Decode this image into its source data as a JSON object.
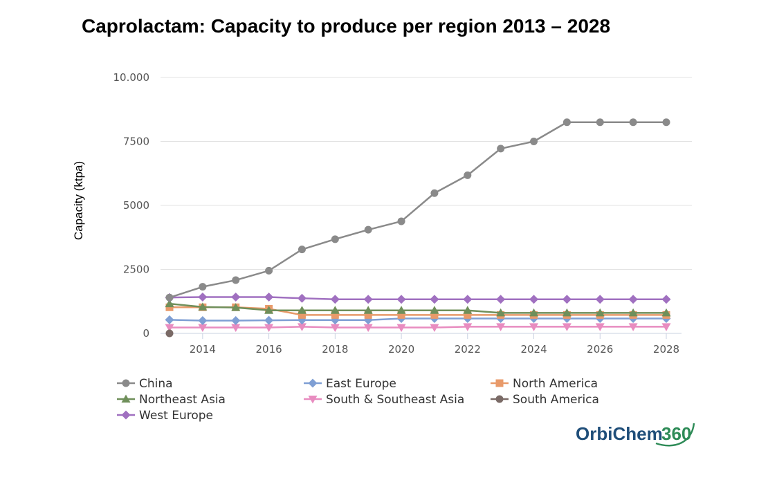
{
  "chart_data": {
    "type": "line",
    "title": "Caprolactam: Capacity to produce per region 2013 – 2028",
    "ylabel": "Capacity (ktpa)",
    "xlabel": "",
    "ylim": [
      0,
      10000
    ],
    "xlim": [
      2013,
      2028
    ],
    "y_ticks": [
      0,
      2500,
      5000,
      7500,
      10000
    ],
    "y_tick_labels": [
      "0",
      "2500",
      "5000",
      "7500",
      "10.000"
    ],
    "x_ticks": [
      2014,
      2016,
      2018,
      2020,
      2022,
      2024,
      2026,
      2028
    ],
    "x_tick_labels": [
      "2014",
      "2016",
      "2018",
      "2020",
      "2022",
      "2024",
      "2026",
      "2028"
    ],
    "x": [
      2013,
      2014,
      2015,
      2016,
      2017,
      2018,
      2019,
      2020,
      2021,
      2022,
      2023,
      2024,
      2025,
      2026,
      2027,
      2028
    ],
    "grid": true,
    "legend_position": "bottom",
    "series": [
      {
        "name": "China",
        "color": "#8a8a8a",
        "marker": "circle",
        "values": [
          1400,
          1820,
          2080,
          2450,
          3280,
          3680,
          4050,
          4380,
          5480,
          6180,
          7220,
          7500,
          8250,
          8250,
          8250,
          8250
        ]
      },
      {
        "name": "East Europe",
        "color": "#7f9fd4",
        "marker": "diamond",
        "values": [
          530,
          500,
          500,
          510,
          520,
          520,
          520,
          580,
          580,
          580,
          580,
          580,
          580,
          580,
          580,
          580
        ]
      },
      {
        "name": "North America",
        "color": "#e89a6a",
        "marker": "square",
        "values": [
          1020,
          1020,
          1020,
          960,
          720,
          720,
          720,
          720,
          720,
          720,
          720,
          720,
          720,
          720,
          720,
          720
        ]
      },
      {
        "name": "Northeast Asia",
        "color": "#6f8f5a",
        "marker": "triangle-up",
        "values": [
          1160,
          1030,
          1010,
          900,
          900,
          900,
          900,
          900,
          900,
          900,
          800,
          800,
          800,
          800,
          800,
          800
        ]
      },
      {
        "name": "South & Southeast Asia",
        "color": "#e88cc0",
        "marker": "triangle-down",
        "values": [
          230,
          230,
          230,
          230,
          260,
          230,
          230,
          230,
          230,
          260,
          260,
          260,
          260,
          260,
          260,
          260
        ]
      },
      {
        "name": "South America",
        "color": "#7a6a66",
        "marker": "circle",
        "values": [
          0,
          null,
          null,
          null,
          null,
          null,
          null,
          null,
          null,
          null,
          null,
          null,
          null,
          null,
          null,
          null
        ]
      },
      {
        "name": "West Europe",
        "color": "#a070c0",
        "marker": "diamond",
        "values": [
          1400,
          1420,
          1420,
          1420,
          1370,
          1330,
          1330,
          1330,
          1330,
          1330,
          1330,
          1330,
          1330,
          1330,
          1330,
          1330
        ]
      }
    ]
  },
  "logo": {
    "part1": "OrbiChem",
    "part2": "360"
  }
}
